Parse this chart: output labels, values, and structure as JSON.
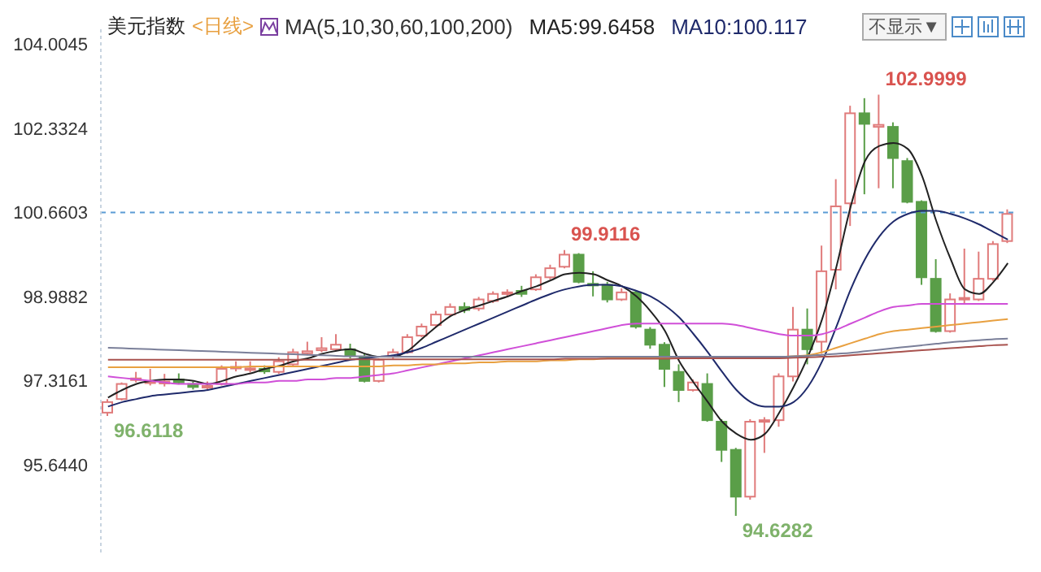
{
  "chart_data": {
    "type": "candlestick",
    "title": "美元指数",
    "subtitle": "<日线>",
    "categories": [
      null,
      null,
      null,
      null,
      null,
      null,
      null,
      null,
      null,
      null,
      null,
      null,
      null,
      null,
      null,
      null,
      null,
      null,
      null,
      null,
      null,
      null,
      null,
      null,
      null,
      null,
      null,
      null,
      null,
      null,
      null,
      null,
      null,
      null,
      null,
      null,
      null,
      null,
      null,
      null,
      null,
      null,
      null,
      null,
      null,
      null,
      null,
      null,
      null,
      null,
      null,
      null,
      null,
      null,
      null,
      null,
      null,
      null,
      null,
      null,
      null,
      null,
      null,
      null
    ],
    "ohlc": [
      [
        96.68,
        96.95,
        96.6118,
        96.89
      ],
      [
        96.95,
        97.28,
        96.92,
        97.25
      ],
      [
        97.33,
        97.49,
        97.28,
        97.36
      ],
      [
        97.27,
        97.55,
        97.22,
        97.3
      ],
      [
        97.26,
        97.45,
        97.2,
        97.3
      ],
      [
        97.34,
        97.46,
        97.24,
        97.28
      ],
      [
        97.25,
        97.3,
        97.14,
        97.19
      ],
      [
        97.18,
        97.3,
        97.14,
        97.21
      ],
      [
        97.25,
        97.62,
        97.22,
        97.55
      ],
      [
        97.56,
        97.7,
        97.5,
        97.59
      ],
      [
        97.53,
        97.7,
        97.48,
        97.56
      ],
      [
        97.55,
        97.62,
        97.45,
        97.5
      ],
      [
        97.49,
        97.78,
        97.45,
        97.7
      ],
      [
        97.64,
        97.95,
        97.6,
        97.88
      ],
      [
        97.86,
        98.09,
        97.82,
        97.9
      ],
      [
        97.92,
        98.18,
        97.88,
        97.96
      ],
      [
        97.94,
        98.24,
        97.9,
        98.03
      ],
      [
        97.94,
        98.05,
        97.76,
        97.82
      ],
      [
        97.79,
        97.85,
        97.28,
        97.31
      ],
      [
        97.31,
        97.76,
        97.28,
        97.73
      ],
      [
        97.79,
        97.95,
        97.74,
        97.88
      ],
      [
        97.88,
        98.24,
        97.85,
        98.18
      ],
      [
        98.21,
        98.45,
        98.18,
        98.39
      ],
      [
        98.42,
        98.7,
        98.38,
        98.63
      ],
      [
        98.63,
        98.85,
        98.6,
        98.78
      ],
      [
        98.78,
        98.87,
        98.66,
        98.72
      ],
      [
        98.75,
        98.98,
        98.7,
        98.93
      ],
      [
        98.9,
        99.09,
        98.86,
        99.04
      ],
      [
        99.04,
        99.13,
        98.99,
        99.07
      ],
      [
        99.1,
        99.2,
        98.98,
        99.04
      ],
      [
        99.13,
        99.43,
        99.1,
        99.37
      ],
      [
        99.37,
        99.62,
        99.33,
        99.55
      ],
      [
        99.58,
        99.9116,
        99.55,
        99.82
      ],
      [
        99.82,
        99.85,
        99.25,
        99.28
      ],
      [
        99.24,
        99.49,
        98.99,
        99.21
      ],
      [
        99.22,
        99.28,
        98.87,
        98.93
      ],
      [
        98.93,
        99.15,
        98.9,
        99.07
      ],
      [
        99.07,
        99.1,
        98.35,
        98.39
      ],
      [
        98.33,
        98.38,
        97.95,
        98.03
      ],
      [
        98.03,
        98.08,
        97.19,
        97.55
      ],
      [
        97.49,
        97.64,
        96.89,
        97.13
      ],
      [
        97.13,
        97.34,
        97.1,
        97.28
      ],
      [
        97.25,
        97.46,
        96.5,
        96.53
      ],
      [
        96.5,
        96.55,
        95.7,
        95.94
      ],
      [
        95.94,
        95.98,
        94.6282,
        95.01
      ],
      [
        95.01,
        96.55,
        94.95,
        96.5
      ],
      [
        96.5,
        96.59,
        95.88,
        96.53
      ],
      [
        96.53,
        97.46,
        96.4,
        97.4
      ],
      [
        97.4,
        98.78,
        97.3,
        98.33
      ],
      [
        98.33,
        98.75,
        97.64,
        97.94
      ],
      [
        98.09,
        100.0,
        97.85,
        99.49
      ],
      [
        99.52,
        101.32,
        99.13,
        100.78
      ],
      [
        100.84,
        102.78,
        100.39,
        102.63
      ],
      [
        102.63,
        102.93,
        101.02,
        102.42
      ],
      [
        102.36,
        102.9999,
        101.14,
        102.4
      ],
      [
        102.36,
        102.45,
        101.14,
        101.74
      ],
      [
        101.68,
        101.74,
        100.84,
        100.87
      ],
      [
        100.87,
        100.9,
        99.22,
        99.37
      ],
      [
        99.34,
        99.73,
        98.27,
        98.3
      ],
      [
        98.3,
        99.05,
        98.27,
        98.93
      ],
      [
        98.93,
        99.94,
        98.85,
        98.96
      ],
      [
        98.93,
        99.88,
        98.9,
        99.34
      ],
      [
        99.34,
        100.09,
        99.3,
        100.03
      ],
      [
        100.09,
        100.72,
        100.05,
        100.63
      ]
    ],
    "colors": [
      "#e07b7b",
      "#e07b7b",
      "#e07b7b",
      "#e07b7b",
      "#e07b7b",
      "#5a9e48",
      "#5a9e48",
      "#e07b7b",
      "#e07b7b",
      "#e07b7b",
      "#e07b7b",
      "#5a9e48",
      "#e07b7b",
      "#e07b7b",
      "#e07b7b",
      "#e07b7b",
      "#e07b7b",
      "#5a9e48",
      "#5a9e48",
      "#e07b7b",
      "#e07b7b",
      "#e07b7b",
      "#e07b7b",
      "#e07b7b",
      "#e07b7b",
      "#5a9e48",
      "#e07b7b",
      "#e07b7b",
      "#e07b7b",
      "#5a9e48",
      "#e07b7b",
      "#e07b7b",
      "#e07b7b",
      "#5a9e48",
      "#5a9e48",
      "#5a9e48",
      "#e07b7b",
      "#5a9e48",
      "#5a9e48",
      "#5a9e48",
      "#5a9e48",
      "#e07b7b",
      "#5a9e48",
      "#5a9e48",
      "#5a9e48",
      "#e07b7b",
      "#e07b7b",
      "#e07b7b",
      "#e07b7b",
      "#5a9e48",
      "#e07b7b",
      "#e07b7b",
      "#e07b7b",
      "#5a9e48",
      "#e07b7b",
      "#5a9e48",
      "#5a9e48",
      "#5a9e48",
      "#5a9e48",
      "#e07b7b",
      "#e07b7b",
      "#e07b7b",
      "#e07b7b",
      "#e07b7b"
    ],
    "series": [
      {
        "type": "line",
        "name": "MA5:99.6458",
        "color": "#222222",
        "values": [
          96.98,
          97.13,
          97.25,
          97.31,
          97.34,
          97.34,
          97.31,
          97.25,
          97.31,
          97.4,
          97.46,
          97.55,
          97.61,
          97.7,
          97.76,
          97.85,
          97.91,
          97.94,
          97.85,
          97.79,
          97.79,
          97.91,
          98.15,
          98.39,
          98.6,
          98.72,
          98.81,
          98.9,
          98.99,
          99.1,
          99.19,
          99.31,
          99.43,
          99.46,
          99.43,
          99.31,
          99.19,
          98.99,
          98.69,
          98.3,
          97.7,
          97.28,
          96.89,
          96.5,
          96.26,
          96.14,
          96.26,
          96.68,
          97.19,
          97.79,
          98.54,
          99.58,
          100.78,
          101.68,
          101.98,
          102.04,
          101.92,
          101.38,
          100.48,
          99.73,
          99.13,
          99.04,
          99.28,
          99.65
        ]
      },
      {
        "type": "line",
        "name": "MA10:100.117",
        "color": "#1f2a6b",
        "values": [
          96.8,
          96.89,
          96.95,
          97.01,
          97.04,
          97.07,
          97.1,
          97.13,
          97.19,
          97.25,
          97.31,
          97.37,
          97.43,
          97.49,
          97.55,
          97.61,
          97.67,
          97.73,
          97.76,
          97.79,
          97.82,
          97.88,
          97.97,
          98.09,
          98.21,
          98.33,
          98.45,
          98.57,
          98.69,
          98.81,
          98.93,
          99.04,
          99.13,
          99.19,
          99.22,
          99.22,
          99.19,
          99.1,
          98.99,
          98.81,
          98.57,
          98.24,
          97.88,
          97.49,
          97.13,
          96.89,
          96.8,
          96.8,
          96.89,
          97.19,
          97.7,
          98.39,
          99.13,
          99.73,
          100.18,
          100.48,
          100.63,
          100.69,
          100.69,
          100.63,
          100.54,
          100.42,
          100.27,
          100.12
        ]
      },
      {
        "type": "line",
        "color": "#d04fd8",
        "values": [
          97.4,
          97.37,
          97.34,
          97.31,
          97.28,
          97.25,
          97.25,
          97.25,
          97.25,
          97.25,
          97.28,
          97.28,
          97.31,
          97.31,
          97.34,
          97.34,
          97.37,
          97.37,
          97.4,
          97.43,
          97.46,
          97.52,
          97.58,
          97.64,
          97.7,
          97.76,
          97.82,
          97.88,
          97.94,
          98.0,
          98.06,
          98.12,
          98.18,
          98.24,
          98.3,
          98.36,
          98.42,
          98.45,
          98.45,
          98.45,
          98.45,
          98.45,
          98.45,
          98.45,
          98.42,
          98.36,
          98.3,
          98.24,
          98.21,
          98.21,
          98.24,
          98.33,
          98.45,
          98.57,
          98.69,
          98.78,
          98.81,
          98.84,
          98.84,
          98.84,
          98.84,
          98.84,
          98.84,
          98.84
        ]
      },
      {
        "type": "line",
        "color": "#e8a040",
        "values": [
          97.58,
          97.58,
          97.58,
          97.58,
          97.58,
          97.58,
          97.58,
          97.58,
          97.58,
          97.58,
          97.6,
          97.6,
          97.6,
          97.6,
          97.6,
          97.6,
          97.6,
          97.6,
          97.6,
          97.6,
          97.62,
          97.62,
          97.64,
          97.64,
          97.66,
          97.66,
          97.68,
          97.68,
          97.7,
          97.7,
          97.7,
          97.72,
          97.72,
          97.74,
          97.74,
          97.76,
          97.76,
          97.77,
          97.77,
          97.78,
          97.78,
          97.78,
          97.79,
          97.79,
          97.79,
          97.79,
          97.79,
          97.79,
          97.8,
          97.82,
          97.88,
          97.97,
          98.06,
          98.15,
          98.24,
          98.3,
          98.33,
          98.36,
          98.39,
          98.42,
          98.45,
          98.48,
          98.51,
          98.54
        ]
      },
      {
        "type": "line",
        "color": "#a8524e",
        "values": [
          97.73,
          97.73,
          97.73,
          97.73,
          97.73,
          97.73,
          97.73,
          97.73,
          97.73,
          97.73,
          97.73,
          97.73,
          97.73,
          97.73,
          97.73,
          97.73,
          97.74,
          97.74,
          97.74,
          97.74,
          97.74,
          97.74,
          97.74,
          97.74,
          97.74,
          97.74,
          97.74,
          97.74,
          97.74,
          97.74,
          97.74,
          97.74,
          97.75,
          97.75,
          97.75,
          97.75,
          97.75,
          97.75,
          97.75,
          97.75,
          97.76,
          97.76,
          97.76,
          97.76,
          97.76,
          97.76,
          97.76,
          97.76,
          97.77,
          97.78,
          97.79,
          97.8,
          97.82,
          97.84,
          97.86,
          97.88,
          97.9,
          97.92,
          97.94,
          97.96,
          97.98,
          98.0,
          98.02,
          98.03
        ]
      },
      {
        "type": "line",
        "color": "#7a7f99",
        "values": [
          97.97,
          97.96,
          97.95,
          97.94,
          97.93,
          97.92,
          97.91,
          97.9,
          97.89,
          97.88,
          97.87,
          97.86,
          97.85,
          97.84,
          97.83,
          97.82,
          97.81,
          97.8,
          97.8,
          97.79,
          97.79,
          97.79,
          97.79,
          97.79,
          97.79,
          97.79,
          97.79,
          97.79,
          97.79,
          97.79,
          97.79,
          97.79,
          97.79,
          97.79,
          97.79,
          97.79,
          97.79,
          97.79,
          97.79,
          97.79,
          97.79,
          97.79,
          97.79,
          97.79,
          97.79,
          97.79,
          97.79,
          97.79,
          97.8,
          97.81,
          97.83,
          97.85,
          97.87,
          97.9,
          97.93,
          97.96,
          97.99,
          98.02,
          98.05,
          98.08,
          98.1,
          98.12,
          98.14,
          98.15
        ]
      }
    ],
    "ylim": [
      93.9,
      104.3
    ],
    "yticks": [
      {
        "value": 95.644,
        "label": "95.6440"
      },
      97.3161,
      98.9882,
      100.6603,
      102.3324,
      104.0045
    ],
    "ref_lines": [
      {
        "axis": "y",
        "value": 100.6603,
        "color": "#5b9bd5",
        "line_style": "dashed"
      }
    ],
    "annotations": [
      "MA(5,10,30,60,100,200)",
      "不显示▼",
      "96.6118",
      "99.9116",
      "94.6282",
      "102.9999"
    ],
    "legend": "top"
  }
}
